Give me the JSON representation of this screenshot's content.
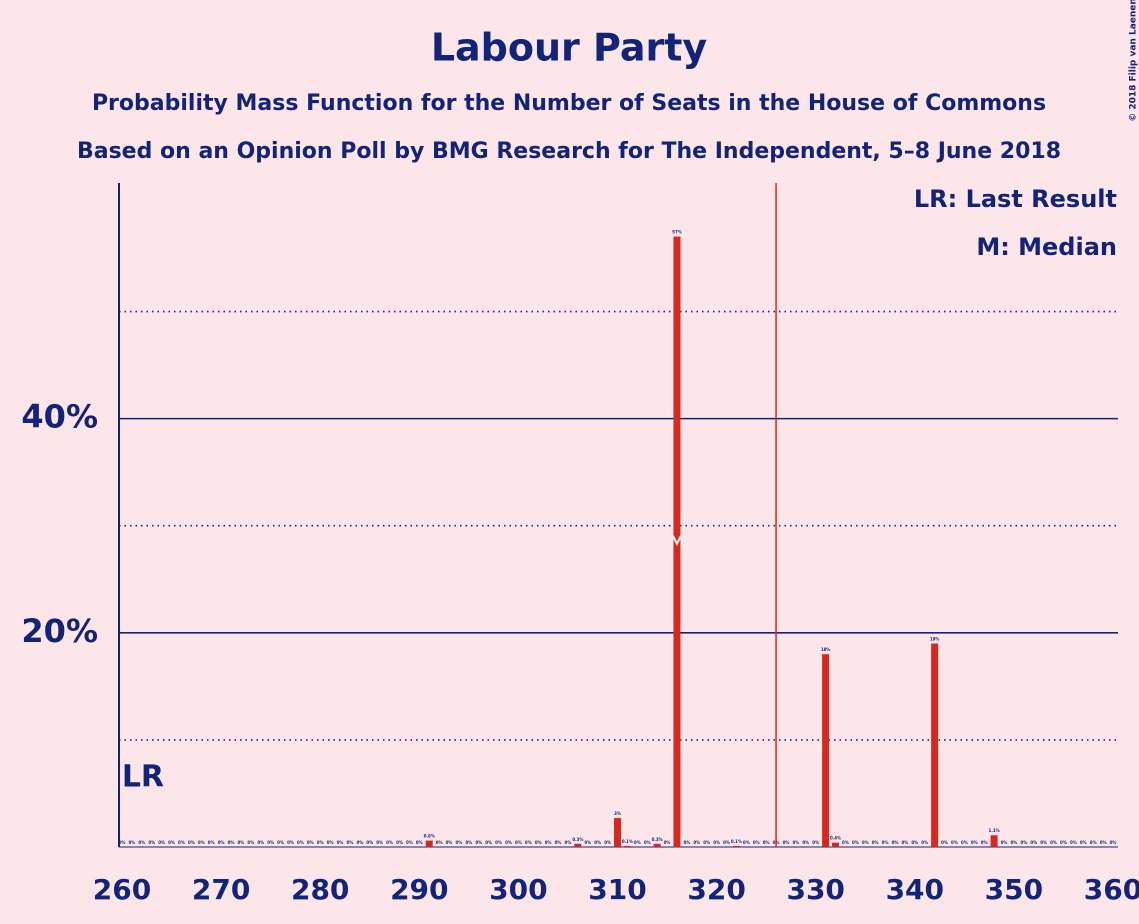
{
  "chart_data": {
    "type": "bar",
    "title": "Labour Party",
    "subtitle": [
      "Probability Mass Function for the Number of Seats in the House of Commons",
      "Based on an Opinion Poll by BMG Research for The Independent, 5–8 June 2018"
    ],
    "copyright": "© 2018 Filip van Laenen",
    "legend": [
      "LR: Last Result",
      "M: Median"
    ],
    "lr_label": "LR",
    "last_result": 262,
    "median": 316,
    "majority": 326,
    "color": "#d7281e",
    "majority_color": "#d7281e",
    "x": [
      260,
      261,
      262,
      263,
      264,
      265,
      266,
      267,
      268,
      269,
      270,
      271,
      272,
      273,
      274,
      275,
      276,
      277,
      278,
      279,
      280,
      281,
      282,
      283,
      284,
      285,
      286,
      287,
      288,
      289,
      290,
      291,
      292,
      293,
      294,
      295,
      296,
      297,
      298,
      299,
      300,
      301,
      302,
      303,
      304,
      305,
      306,
      307,
      308,
      309,
      310,
      311,
      312,
      313,
      314,
      315,
      316,
      317,
      318,
      319,
      320,
      321,
      322,
      323,
      324,
      325,
      326,
      327,
      328,
      329,
      330,
      331,
      332,
      333,
      334,
      335,
      336,
      337,
      338,
      339,
      340,
      341,
      342,
      343,
      344,
      345,
      346,
      347,
      348,
      349,
      350,
      351,
      352,
      353,
      354,
      355,
      356,
      357,
      358,
      359,
      360
    ],
    "values": [
      0,
      0,
      0,
      0,
      0,
      0,
      0,
      0,
      0,
      0,
      0,
      0,
      0,
      0,
      0,
      0,
      0,
      0,
      0,
      0,
      0,
      0,
      0,
      0,
      0,
      0,
      0,
      0,
      0,
      0,
      0,
      0.6,
      0,
      0,
      0,
      0,
      0,
      0,
      0,
      0,
      0,
      0,
      0,
      0,
      0,
      0,
      0.3,
      0,
      0,
      0,
      2.7,
      0.1,
      0,
      0,
      0.3,
      0,
      57,
      0,
      0,
      0,
      0,
      0,
      0.1,
      0,
      0,
      0,
      0,
      0,
      0,
      0,
      0,
      18,
      0.4,
      0,
      0,
      0,
      0,
      0,
      0,
      0,
      0,
      0,
      19,
      0,
      0,
      0,
      0,
      0,
      1.1,
      0,
      0,
      0,
      0,
      0,
      0,
      0,
      0,
      0,
      0,
      0,
      0
    ],
    "value_labels": [
      "0%",
      "0%",
      "0%",
      "0%",
      "0%",
      "0%",
      "0%",
      "0%",
      "0%",
      "0%",
      "0%",
      "0%",
      "0%",
      "0%",
      "0%",
      "0%",
      "0%",
      "0%",
      "0%",
      "0%",
      "0%",
      "0%",
      "0%",
      "0%",
      "0%",
      "0%",
      "0%",
      "0%",
      "0%",
      "0%",
      "0%",
      "0.6%",
      "0%",
      "0%",
      "0%",
      "0%",
      "0%",
      "0%",
      "0%",
      "0%",
      "0%",
      "0%",
      "0%",
      "0%",
      "0%",
      "0%",
      "0.3%",
      "0%",
      "0%",
      "0%",
      "3%",
      "0.1%",
      "0%",
      "0%",
      "0.3%",
      "0%",
      "57%",
      "0%",
      "0%",
      "0%",
      "0%",
      "0%",
      "0.1%",
      "0%",
      "0%",
      "0%",
      "0%",
      "0%",
      "0%",
      "0%",
      "0%",
      "18%",
      "0.4%",
      "0%",
      "0%",
      "0%",
      "0%",
      "0%",
      "0%",
      "0%",
      "0%",
      "0%",
      "19%",
      "0%",
      "0%",
      "0%",
      "0%",
      "0%",
      "1.1%",
      "0%",
      "0%",
      "0%",
      "0%",
      "0%",
      "0%",
      "0%",
      "0%",
      "0%",
      "0%",
      "0%",
      "0%"
    ],
    "xlim": [
      260,
      360
    ],
    "xticks": [
      260,
      270,
      280,
      290,
      300,
      310,
      320,
      330,
      340,
      350,
      360
    ],
    "ylim": [
      0,
      62
    ],
    "yticks": [
      {
        "value": 20,
        "label": "20%"
      },
      {
        "value": 40,
        "label": "40%"
      }
    ],
    "minor_yticks": [
      10,
      30,
      50
    ],
    "grid": true
  }
}
